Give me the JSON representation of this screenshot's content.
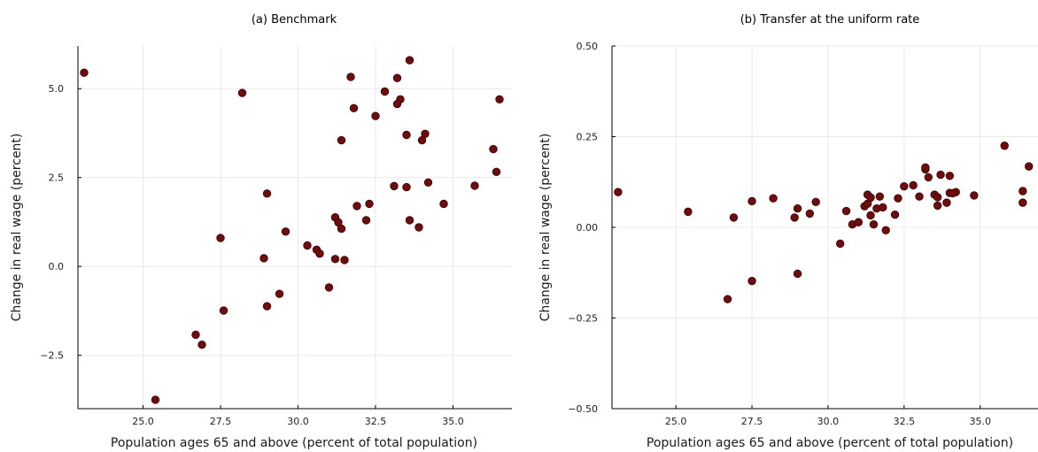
{
  "figure": {
    "point_color": "#6e0d0d",
    "grid": true,
    "legend": "none"
  },
  "chart_data": [
    {
      "type": "scatter",
      "title": "(a) Benchmark",
      "xlabel": "Population ages 65 and above (percent of total population)",
      "ylabel": "Change in real wage (percent)",
      "xlim": [
        22.9,
        36.9
      ],
      "ylim": [
        -4.0,
        6.2
      ],
      "xticks": [
        25.0,
        27.5,
        30.0,
        32.5,
        35.0
      ],
      "xtick_labels": [
        "25.0",
        "27.5",
        "30.0",
        "32.5",
        "35.0"
      ],
      "yticks": [
        -2.5,
        0.0,
        2.5,
        5.0
      ],
      "ytick_labels": [
        "−2.5",
        "0.0",
        "2.5",
        "5.0"
      ],
      "x": [
        23.1,
        28.2,
        31.7,
        33.2,
        33.6,
        32.8,
        33.3,
        33.2,
        36.5,
        31.8,
        32.5,
        34.1,
        33.5,
        31.4,
        36.3,
        34.0,
        36.4,
        34.2,
        33.1,
        33.5,
        35.7,
        29.0,
        32.3,
        34.7,
        31.9,
        33.6,
        31.2,
        32.2,
        33.9,
        31.3,
        31.4,
        29.6,
        27.5,
        30.3,
        30.6,
        30.7,
        28.9,
        31.2,
        31.5,
        31.0,
        29.4,
        29.0,
        27.6,
        26.7,
        26.9,
        25.4
      ],
      "y": [
        5.45,
        4.88,
        5.33,
        5.3,
        5.8,
        4.92,
        4.7,
        4.57,
        4.7,
        4.45,
        4.23,
        3.73,
        3.7,
        3.55,
        3.3,
        3.55,
        2.66,
        2.36,
        2.26,
        2.23,
        2.27,
        2.05,
        1.76,
        1.76,
        1.7,
        1.3,
        1.38,
        1.3,
        1.1,
        1.24,
        1.06,
        0.98,
        0.8,
        0.59,
        0.47,
        0.36,
        0.23,
        0.21,
        0.18,
        -0.59,
        -0.77,
        -1.12,
        -1.24,
        -1.92,
        -2.2,
        -3.75
      ]
    },
    {
      "type": "scatter",
      "title": "(b) Transfer at the uniform rate",
      "xlabel": "Population ages 65 and above (percent of total population)",
      "ylabel": "Change in real wage (percent)",
      "xlim": [
        22.9,
        36.9
      ],
      "ylim": [
        -0.5,
        0.5
      ],
      "xticks": [
        25.0,
        27.5,
        30.0,
        32.5,
        35.0
      ],
      "xtick_labels": [
        "25.0",
        "27.5",
        "30.0",
        "32.5",
        "35.0"
      ],
      "yticks": [
        -0.5,
        -0.25,
        0.0,
        0.25,
        0.5
      ],
      "ytick_labels": [
        "−0.50",
        "−0.25",
        "0.00",
        "0.25",
        "0.50"
      ],
      "x": [
        23.1,
        25.4,
        26.7,
        27.5,
        27.5,
        26.9,
        28.2,
        29.0,
        29.0,
        28.9,
        29.4,
        29.6,
        30.4,
        30.6,
        30.8,
        31.0,
        31.2,
        31.3,
        31.3,
        31.4,
        31.5,
        31.4,
        31.6,
        31.7,
        31.8,
        31.9,
        32.2,
        32.3,
        32.5,
        32.8,
        33.0,
        33.2,
        33.2,
        33.3,
        33.5,
        33.6,
        33.7,
        33.6,
        33.9,
        34.0,
        34.0,
        34.2,
        34.1,
        34.8,
        35.8,
        36.4,
        36.4,
        36.6
      ],
      "y": [
        0.097,
        0.043,
        -0.198,
        -0.148,
        0.072,
        0.027,
        0.08,
        0.052,
        -0.128,
        0.027,
        0.038,
        0.07,
        -0.045,
        0.045,
        0.008,
        0.014,
        0.058,
        0.065,
        0.09,
        0.082,
        0.008,
        0.033,
        0.052,
        0.085,
        0.055,
        -0.008,
        0.035,
        0.08,
        0.113,
        0.116,
        0.085,
        0.16,
        0.165,
        0.138,
        0.09,
        0.083,
        0.145,
        0.06,
        0.068,
        0.142,
        0.095,
        0.097,
        0.094,
        0.088,
        0.225,
        0.068,
        0.1,
        0.168
      ]
    }
  ]
}
